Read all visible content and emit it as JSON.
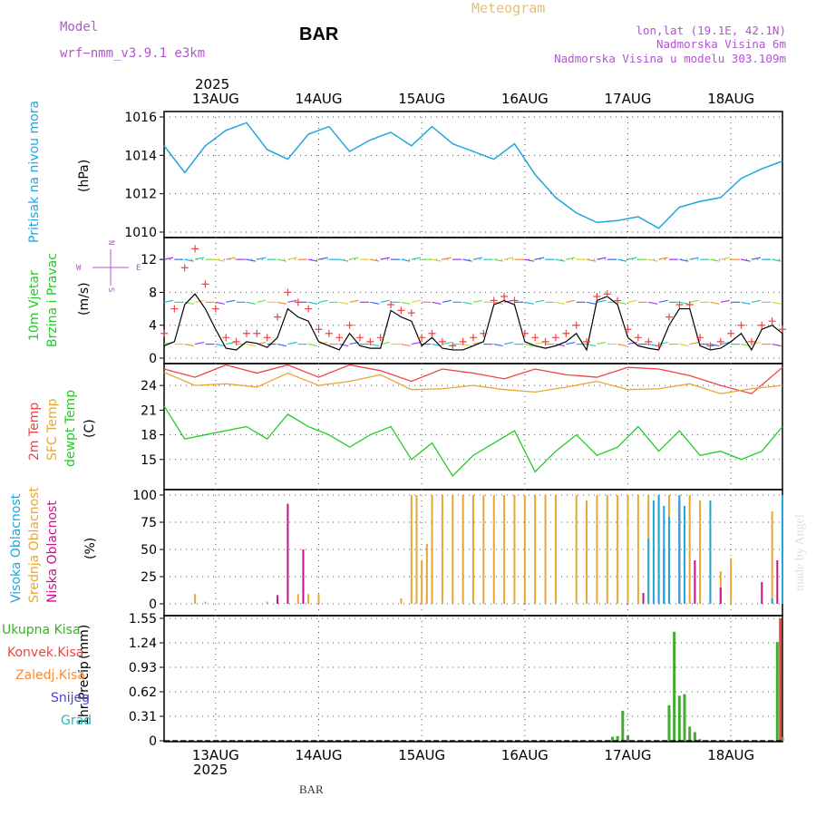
{
  "header": {
    "model_label": "Model",
    "model_name": "wrf−nmm_v3.9.1  e3km",
    "station": "BAR",
    "title": "Meteogram",
    "coords": "lon,lat (19.1E, 42.1N)",
    "elevation": "Nadmorska Visina 6m",
    "model_elevation": "Nadmorska Visina u modelu 303.109m",
    "footer_station": "BAR",
    "watermark": "made by Angel"
  },
  "time_axis": {
    "year": "2025",
    "days": [
      "13AUG",
      "14AUG",
      "15AUG",
      "16AUG",
      "17AUG",
      "18AUG"
    ],
    "range_days": [
      12.5,
      18.5
    ]
  },
  "colors": {
    "pressure": "#1fa6e0",
    "wind_label": "#22cc22",
    "temp_2m": "#ee4444",
    "temp_sfc": "#e8a733",
    "dewpoint": "#22cc22",
    "cloud_high": "#1fa6e0",
    "cloud_mid": "#e8a733",
    "cloud_low": "#cc1188",
    "precip_total": "#44aa33",
    "precip_conv": "#ee4444",
    "precip_frozen": "#ff8833",
    "precip_snow": "#4444dd",
    "precip_hail": "#22bbbb",
    "header_text": "#b055d0"
  },
  "compass": {
    "n": "N",
    "s": "S",
    "e": "E",
    "w": "W"
  },
  "chart_data": [
    {
      "type": "line",
      "name": "pressure",
      "ylabel": "Pritisak na nivou mora",
      "units": "(hPa)",
      "ylim": [
        1010,
        1016
      ],
      "yticks": [
        "1016",
        "1014",
        "1012",
        "1010"
      ],
      "x": [
        12.5,
        12.7,
        12.9,
        13.1,
        13.3,
        13.5,
        13.7,
        13.9,
        14.1,
        14.3,
        14.5,
        14.7,
        14.9,
        15.1,
        15.3,
        15.5,
        15.7,
        15.9,
        16.1,
        16.3,
        16.5,
        16.7,
        16.9,
        17.1,
        17.3,
        17.5,
        17.7,
        17.9,
        18.1,
        18.3,
        18.5
      ],
      "values": [
        1014.5,
        1013.1,
        1014.5,
        1015.3,
        1015.7,
        1014.3,
        1013.8,
        1015.1,
        1015.5,
        1014.2,
        1014.8,
        1015.2,
        1014.5,
        1015.5,
        1014.6,
        1014.2,
        1013.8,
        1014.6,
        1013.0,
        1011.8,
        1011.0,
        1010.5,
        1010.6,
        1010.8,
        1010.2,
        1011.3,
        1011.6,
        1011.8,
        1012.8,
        1013.3,
        1013.7
      ],
      "grid": true
    },
    {
      "type": "line",
      "name": "wind",
      "ylabel_line1": "10m Vjetar",
      "ylabel_line2": "Brzina i Pravac",
      "units": "(m/s)",
      "ylim": [
        0,
        14
      ],
      "yticks": [
        "12",
        "8",
        "4",
        "0"
      ],
      "x": [
        12.5,
        12.6,
        12.7,
        12.8,
        12.9,
        13.0,
        13.1,
        13.2,
        13.3,
        13.4,
        13.5,
        13.6,
        13.7,
        13.8,
        13.9,
        14.0,
        14.1,
        14.2,
        14.3,
        14.4,
        14.5,
        14.6,
        14.7,
        14.8,
        14.9,
        15.0,
        15.1,
        15.2,
        15.3,
        15.4,
        15.5,
        15.6,
        15.7,
        15.8,
        15.9,
        16.0,
        16.1,
        16.2,
        16.3,
        16.4,
        16.5,
        16.6,
        16.7,
        16.8,
        16.9,
        17.0,
        17.1,
        17.2,
        17.3,
        17.4,
        17.5,
        17.6,
        17.7,
        17.8,
        17.9,
        18.0,
        18.1,
        18.2,
        18.3,
        18.4,
        18.5
      ],
      "values": [
        1.5,
        2.0,
        6.5,
        7.8,
        6.0,
        3.5,
        1.2,
        1.0,
        2.0,
        1.8,
        1.3,
        2.5,
        6.0,
        5.0,
        4.5,
        2.0,
        1.5,
        1.0,
        3.0,
        1.5,
        1.2,
        1.2,
        5.8,
        5.0,
        4.5,
        1.5,
        2.5,
        1.2,
        1.0,
        1.0,
        1.5,
        2.0,
        6.5,
        7.0,
        6.5,
        2.0,
        1.5,
        1.2,
        1.5,
        2.0,
        3.0,
        1.0,
        7.0,
        7.5,
        6.5,
        2.5,
        1.5,
        1.2,
        1.0,
        4.0,
        6.0,
        6.0,
        1.5,
        1.0,
        1.2,
        2.0,
        3.0,
        1.0,
        3.5,
        4.0,
        3.0
      ],
      "gust_values": [
        3.0,
        6.0,
        11.0,
        13.3,
        9.0,
        6.0,
        2.5,
        2.0,
        3.0,
        3.0,
        2.5,
        5.0,
        8.0,
        6.8,
        6.0,
        3.5,
        3.0,
        2.5,
        4.0,
        2.5,
        2.0,
        2.5,
        6.5,
        5.8,
        5.5,
        2.5,
        3.0,
        2.0,
        1.5,
        2.0,
        2.5,
        3.0,
        7.0,
        7.5,
        7.0,
        3.0,
        2.5,
        2.0,
        2.5,
        3.0,
        4.0,
        2.0,
        7.5,
        7.8,
        7.0,
        3.5,
        2.5,
        2.0,
        1.5,
        5.0,
        6.5,
        6.5,
        2.5,
        1.5,
        2.0,
        3.0,
        4.0,
        2.0,
        4.0,
        4.5,
        3.5
      ],
      "grid": true
    },
    {
      "type": "line",
      "name": "temperature",
      "ylabel_lines": [
        "2m Temp",
        "SFC Temp",
        "dewpt Temp"
      ],
      "units": "(C)",
      "ylim": [
        12,
        26
      ],
      "yticks": [
        "24",
        "21",
        "18",
        "15"
      ],
      "series": [
        {
          "name": "2m Temp",
          "x": [
            12.5,
            12.8,
            13.1,
            13.4,
            13.7,
            14.0,
            14.3,
            14.6,
            14.9,
            15.2,
            15.5,
            15.8,
            16.1,
            16.4,
            16.7,
            17.0,
            17.3,
            17.6,
            17.9,
            18.2,
            18.5
          ],
          "values": [
            26.0,
            25.0,
            26.5,
            25.5,
            26.5,
            25.0,
            26.5,
            25.8,
            24.5,
            26.0,
            25.5,
            24.8,
            26.0,
            25.3,
            25.0,
            26.2,
            26.0,
            25.2,
            24.0,
            23.0,
            26.2
          ]
        },
        {
          "name": "SFC Temp",
          "x": [
            12.5,
            12.8,
            13.1,
            13.4,
            13.7,
            14.0,
            14.3,
            14.6,
            14.9,
            15.2,
            15.5,
            15.8,
            16.1,
            16.4,
            16.7,
            17.0,
            17.3,
            17.6,
            17.9,
            18.2,
            18.5
          ],
          "values": [
            25.6,
            24.0,
            24.2,
            23.8,
            25.5,
            24.0,
            24.5,
            25.3,
            23.5,
            23.6,
            24.0,
            23.5,
            23.2,
            23.8,
            24.5,
            23.5,
            23.6,
            24.2,
            23.0,
            23.6,
            24.0
          ]
        },
        {
          "name": "dewpt Temp",
          "x": [
            12.5,
            12.7,
            12.9,
            13.1,
            13.3,
            13.5,
            13.7,
            13.9,
            14.1,
            14.3,
            14.5,
            14.7,
            14.9,
            15.1,
            15.3,
            15.5,
            15.7,
            15.9,
            16.1,
            16.3,
            16.5,
            16.7,
            16.9,
            17.1,
            17.3,
            17.5,
            17.7,
            17.9,
            18.1,
            18.3,
            18.5
          ],
          "values": [
            21.5,
            17.5,
            18.0,
            18.5,
            19.0,
            17.5,
            20.5,
            19.0,
            18.0,
            16.5,
            18.0,
            19.0,
            15.0,
            17.0,
            13.0,
            15.5,
            17.0,
            18.5,
            13.5,
            16.0,
            18.0,
            15.5,
            16.5,
            19.0,
            16.0,
            18.5,
            15.5,
            16.0,
            15.0,
            16.0,
            19.0
          ]
        }
      ],
      "grid": true
    },
    {
      "type": "bar",
      "name": "clouds",
      "ylabel_lines": [
        "Visoka Oblacnost",
        "Srednja Oblacnost",
        "Niska Oblacnost"
      ],
      "units": "(%)",
      "ylim": [
        0,
        100
      ],
      "yticks": [
        "100",
        "75",
        "50",
        "25",
        "0"
      ],
      "series": [
        {
          "name": "Srednja Oblacnost",
          "x": [
            12.8,
            12.9,
            13.5,
            13.8,
            13.9,
            14.0,
            14.8,
            14.9,
            14.95,
            15.0,
            15.05,
            15.1,
            15.2,
            15.3,
            15.4,
            15.5,
            15.6,
            15.7,
            15.8,
            15.9,
            16.0,
            16.1,
            16.2,
            16.3,
            16.5,
            16.6,
            16.7,
            16.8,
            16.9,
            17.0,
            17.1,
            17.2,
            17.3,
            17.4,
            17.5,
            17.6,
            17.7,
            17.8,
            17.9,
            18.0,
            18.4,
            18.5
          ],
          "values": [
            9,
            2,
            2,
            9,
            9,
            9,
            5,
            100,
            100,
            40,
            55,
            100,
            100,
            100,
            100,
            100,
            100,
            100,
            100,
            100,
            100,
            100,
            100,
            100,
            100,
            95,
            100,
            100,
            100,
            100,
            100,
            100,
            100,
            100,
            100,
            100,
            95,
            90,
            30,
            42,
            85,
            100
          ]
        },
        {
          "name": "Niska Oblacnost",
          "x": [
            13.6,
            13.7,
            13.85,
            17.15,
            17.35,
            17.5,
            17.65,
            17.9,
            18.3,
            18.45
          ],
          "values": [
            8,
            92,
            50,
            10,
            50,
            95,
            40,
            15,
            20,
            40
          ]
        },
        {
          "name": "Visoka Oblacnost",
          "x": [
            17.2,
            17.25,
            17.3,
            17.35,
            17.4,
            17.5,
            17.55,
            17.8,
            18.4,
            18.5
          ],
          "values": [
            60,
            95,
            100,
            90,
            80,
            100,
            90,
            95,
            5,
            100
          ]
        }
      ],
      "grid": true
    },
    {
      "type": "bar",
      "name": "precipitation",
      "ylabel": "1hr Precip",
      "units": "(mm)",
      "ylim": [
        0,
        1.55
      ],
      "yticks": [
        "1.55",
        "1.24",
        "0.93",
        "0.62",
        "0.31",
        "0"
      ],
      "legend": [
        "Ukupna Kisa",
        "Konvek.Kisa",
        "Zaledj.Kisa",
        "Snijeg",
        "Grad"
      ],
      "series": [
        {
          "name": "Ukupna Kisa",
          "x": [
            16.85,
            16.9,
            16.95,
            17.0,
            17.4,
            17.45,
            17.5,
            17.55,
            17.6,
            17.65,
            17.7,
            18.45,
            18.5
          ],
          "values": [
            0.05,
            0.06,
            0.38,
            0.07,
            0.45,
            1.38,
            0.57,
            0.59,
            0.18,
            0.11,
            0.02,
            1.25,
            0.05
          ]
        },
        {
          "name": "Konvek.Kisa",
          "x": [
            18.48
          ],
          "values": [
            1.55
          ]
        }
      ],
      "grid": true
    }
  ]
}
